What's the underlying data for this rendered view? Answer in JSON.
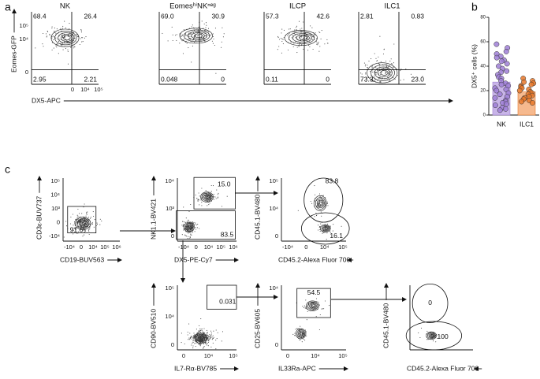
{
  "panel_a": {
    "label": "a",
    "y_axis_label": "Eomes-GFP",
    "x_axis_label": "DX5-APC",
    "yticks": [
      "0",
      "10⁴",
      "10⁵"
    ],
    "xticks": [
      "0",
      "10⁴",
      "10⁵"
    ],
    "plots": [
      {
        "title": "NK",
        "quadrants": [
          "68.4",
          "26.4",
          "2.95",
          "2.21"
        ]
      },
      {
        "title": "EomesʰⁱNKⁿᵉᵍ",
        "quadrants": [
          "69.0",
          "30.9",
          "0.048",
          "0"
        ]
      },
      {
        "title": "ILCP",
        "quadrants": [
          "57.3",
          "42.6",
          "0.11",
          "0"
        ]
      },
      {
        "title": "ILC1",
        "quadrants": [
          "2.81",
          "0.83",
          "73.3",
          "23.0"
        ]
      }
    ]
  },
  "panel_b": {
    "label": "b",
    "chart_data": {
      "type": "bar",
      "y_axis_label": "DX5⁺ cells (%)",
      "categories": [
        "NK",
        "ILC1"
      ],
      "values": [
        27,
        19
      ],
      "colors": [
        "#c8b4e8",
        "#f6b98e"
      ],
      "point_colors": [
        "#9f7fd6",
        "#e8782a"
      ],
      "points": [
        [
          58,
          55,
          52,
          50,
          48,
          47,
          45,
          44,
          42,
          40,
          38,
          36,
          35,
          33,
          31,
          30,
          28,
          26,
          25,
          24,
          22,
          21,
          20,
          18,
          17,
          15,
          14,
          12,
          11,
          10,
          9,
          8,
          6,
          5,
          4
        ],
        [
          30,
          28,
          27,
          26,
          25,
          24,
          23,
          22,
          21,
          20,
          19,
          18,
          17,
          16,
          15,
          14,
          13,
          12,
          11,
          10
        ]
      ],
      "ylim": [
        0,
        80
      ],
      "yticks": [
        0,
        20,
        40,
        60,
        80
      ]
    }
  },
  "panel_c": {
    "label": "c",
    "plots": [
      {
        "y_axis_label": "CD3ε-BUV737",
        "x_axis_label": "CD19-BUV563",
        "yticks": [
          "-10⁴",
          "0",
          "10³",
          "10⁴",
          "10⁵"
        ],
        "xticks": [
          "-10⁴",
          "0",
          "10⁴",
          "10⁵",
          "10⁶"
        ],
        "gates": [
          "91.6"
        ]
      },
      {
        "y_axis_label": "NK1.1-BV421",
        "x_axis_label": "DX5-PE-Cy7",
        "yticks": [
          "0",
          "10³",
          "10⁴"
        ],
        "xticks": [
          "-10⁴",
          "0",
          "10⁴",
          "10⁵",
          "10⁶"
        ],
        "gates": [
          "15.0",
          "83.5"
        ]
      },
      {
        "y_axis_label": "CD45.1-BV480",
        "x_axis_label": "CD45.2-Alexa Fluor 700",
        "yticks": [
          "0",
          "10⁴",
          "10⁵"
        ],
        "xticks": [
          "-10⁴",
          "0",
          "10⁴",
          "10⁵"
        ],
        "gates": [
          "83.8",
          "16.1"
        ]
      },
      {
        "y_axis_label": "CD90-BV510",
        "x_axis_label": "IL7-Rα-BV785",
        "yticks": [
          "0",
          "10⁴",
          "10⁵"
        ],
        "xticks": [
          "0",
          "10⁴",
          "10⁵"
        ],
        "gates": [
          "0.031"
        ]
      },
      {
        "y_axis_label": "CD25-BV605",
        "x_axis_label": "IL33Ra-APC",
        "yticks": [
          "0",
          "10⁴"
        ],
        "xticks": [
          "0",
          "10⁴",
          "10⁵"
        ],
        "gates": [
          "54.5"
        ]
      },
      {
        "y_axis_label": "CD45.1-BV480",
        "x_axis_label": "CD45.2-Alexa Fluor 700",
        "gates": [
          "0",
          "100"
        ]
      }
    ]
  }
}
